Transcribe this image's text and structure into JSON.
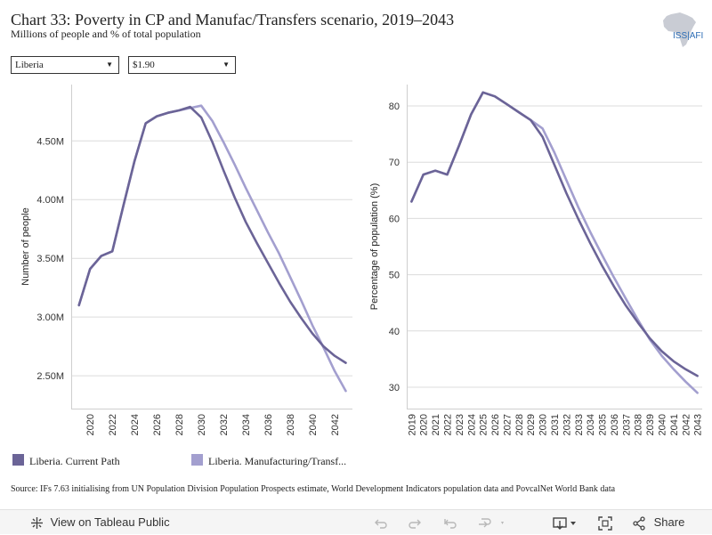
{
  "header": {
    "title": "Chart 33: Poverty in CP and Manufac/Transfers scenario, 2019–2043",
    "subtitle": "Millions of people and % of total population",
    "logo_text": "ISS|AFI"
  },
  "filters": {
    "country": "Liberia",
    "poverty_line": "$1.90"
  },
  "colors": {
    "current_path": "#6b6497",
    "manufacturing": "#a39fcf"
  },
  "chart_data": [
    {
      "type": "line",
      "ylabel": "Number of people",
      "xlabel": "",
      "ylim": [
        2.22,
        4.98
      ],
      "xlim": [
        2018.3,
        2043.6
      ],
      "y_ticks": [
        2.5,
        3.0,
        3.5,
        4.0,
        4.5
      ],
      "y_tick_labels": [
        "2.50M",
        "3.00M",
        "3.50M",
        "4.00M",
        "4.50M"
      ],
      "x_ticks": [
        2020,
        2022,
        2024,
        2026,
        2028,
        2030,
        2032,
        2034,
        2036,
        2038,
        2040,
        2042
      ],
      "x": [
        2019,
        2020,
        2021,
        2022,
        2023,
        2024,
        2025,
        2026,
        2027,
        2028,
        2029,
        2030,
        2031,
        2032,
        2033,
        2034,
        2035,
        2036,
        2037,
        2038,
        2039,
        2040,
        2041,
        2042,
        2043
      ],
      "series": [
        {
          "name": "Liberia. Current Path",
          "values": [
            3.1,
            3.41,
            3.52,
            3.56,
            3.95,
            4.33,
            4.65,
            4.71,
            4.74,
            4.76,
            4.79,
            4.7,
            4.49,
            4.25,
            4.02,
            3.81,
            3.63,
            3.46,
            3.29,
            3.13,
            2.99,
            2.86,
            2.75,
            2.67,
            2.61
          ]
        },
        {
          "name": "Liberia. Manufacturing/Transf...",
          "values": [
            3.1,
            3.41,
            3.52,
            3.56,
            3.95,
            4.33,
            4.65,
            4.71,
            4.74,
            4.76,
            4.78,
            4.8,
            4.67,
            4.49,
            4.3,
            4.1,
            3.91,
            3.72,
            3.54,
            3.34,
            3.14,
            2.93,
            2.74,
            2.54,
            2.37
          ]
        }
      ]
    },
    {
      "type": "line",
      "ylabel": "Percentage of population (%)",
      "xlabel": "",
      "ylim": [
        26.2,
        83.8
      ],
      "xlim": [
        2018.6,
        2043.4
      ],
      "y_ticks": [
        30,
        40,
        50,
        60,
        70,
        80
      ],
      "y_tick_labels": [
        "30",
        "40",
        "50",
        "60",
        "70",
        "80"
      ],
      "x_ticks": [
        2019,
        2020,
        2021,
        2022,
        2023,
        2024,
        2025,
        2026,
        2027,
        2028,
        2029,
        2030,
        2031,
        2032,
        2033,
        2034,
        2035,
        2036,
        2037,
        2038,
        2039,
        2040,
        2041,
        2042,
        2043
      ],
      "x": [
        2019,
        2020,
        2021,
        2022,
        2023,
        2024,
        2025,
        2026,
        2027,
        2028,
        2029,
        2030,
        2031,
        2032,
        2033,
        2034,
        2035,
        2036,
        2037,
        2038,
        2039,
        2040,
        2041,
        2042,
        2043
      ],
      "series": [
        {
          "name": "Liberia. Current Path",
          "values": [
            63.0,
            67.8,
            68.5,
            67.8,
            73.0,
            78.5,
            82.4,
            81.7,
            80.3,
            78.9,
            77.5,
            74.5,
            69.5,
            64.5,
            59.9,
            55.6,
            51.6,
            47.9,
            44.5,
            41.5,
            38.7,
            36.4,
            34.6,
            33.2,
            32.0
          ]
        },
        {
          "name": "Liberia. Manufacturing/Transf...",
          "values": [
            63.0,
            67.8,
            68.5,
            67.8,
            73.0,
            78.5,
            82.4,
            81.7,
            80.3,
            78.9,
            77.5,
            76.0,
            71.7,
            66.8,
            62.0,
            57.6,
            53.5,
            49.5,
            45.7,
            42.0,
            38.5,
            35.6,
            33.2,
            31.0,
            29.0
          ]
        }
      ]
    }
  ],
  "legend": [
    {
      "label": "Liberia. Current Path"
    },
    {
      "label": "Liberia. Manufacturing/Transf..."
    }
  ],
  "source": "Source: IFs 7.63 initialising from UN Population Division Population Prospects estimate, World Development Indicators population data and PovcalNet World Bank data",
  "toolbar": {
    "view_label": "View on Tableau Public",
    "share_label": "Share"
  }
}
